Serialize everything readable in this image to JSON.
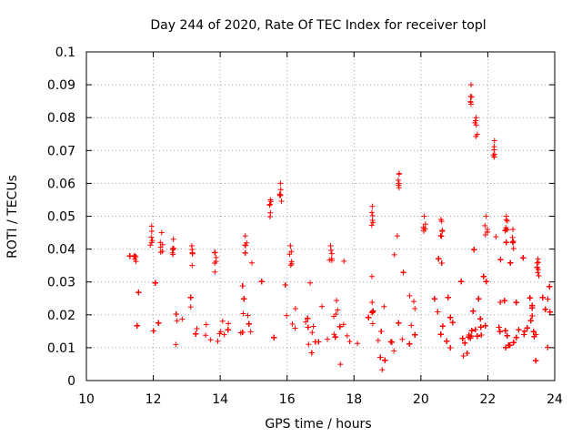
{
  "chart_data": {
    "type": "scatter",
    "title": "Day 244 of 2020, Rate Of TEC Index for receiver topl",
    "xlabel": "GPS time / hours",
    "ylabel": "ROTI / TECUs",
    "xlim": [
      10,
      24
    ],
    "ylim": [
      0,
      0.1
    ],
    "x_ticks": [
      10,
      12,
      14,
      16,
      18,
      20,
      22,
      24
    ],
    "x_tick_labels": [
      "10",
      "12",
      "14",
      "16",
      "18",
      "20",
      "22",
      "24"
    ],
    "y_ticks": [
      0,
      0.01,
      0.02,
      0.03,
      0.04,
      0.05,
      0.06,
      0.07,
      0.08,
      0.09,
      0.1
    ],
    "y_tick_labels": [
      "0",
      "0.01",
      "0.02",
      "0.03",
      "0.04",
      "0.05",
      "0.06",
      "0.07",
      "0.08",
      "0.09",
      "0.1"
    ],
    "grid": true,
    "marker": "+",
    "series": [
      {
        "name": "ROTI",
        "color": "#ff0000",
        "segments": [
          {
            "x_start": 11.3,
            "x_end": 20.15,
            "baseline": 0.014,
            "spread": 0.006
          },
          {
            "x_start": 20.3,
            "x_end": 24.0,
            "baseline": 0.013,
            "spread": 0.006
          }
        ],
        "peaks": [
          {
            "x": 11.45,
            "y": 0.038
          },
          {
            "x": 11.95,
            "y": 0.047
          },
          {
            "x": 12.25,
            "y": 0.045
          },
          {
            "x": 12.6,
            "y": 0.043
          },
          {
            "x": 13.15,
            "y": 0.041
          },
          {
            "x": 13.85,
            "y": 0.039
          },
          {
            "x": 14.75,
            "y": 0.044
          },
          {
            "x": 15.5,
            "y": 0.055
          },
          {
            "x": 15.8,
            "y": 0.06
          },
          {
            "x": 16.1,
            "y": 0.041
          },
          {
            "x": 17.3,
            "y": 0.041
          },
          {
            "x": 18.55,
            "y": 0.053
          },
          {
            "x": 19.35,
            "y": 0.063
          },
          {
            "x": 20.1,
            "y": 0.05
          },
          {
            "x": 20.6,
            "y": 0.049
          },
          {
            "x": 21.5,
            "y": 0.09
          },
          {
            "x": 21.65,
            "y": 0.08
          },
          {
            "x": 21.95,
            "y": 0.05
          },
          {
            "x": 22.2,
            "y": 0.073
          },
          {
            "x": 22.55,
            "y": 0.05
          },
          {
            "x": 22.75,
            "y": 0.046
          },
          {
            "x": 23.5,
            "y": 0.037
          }
        ]
      }
    ]
  }
}
